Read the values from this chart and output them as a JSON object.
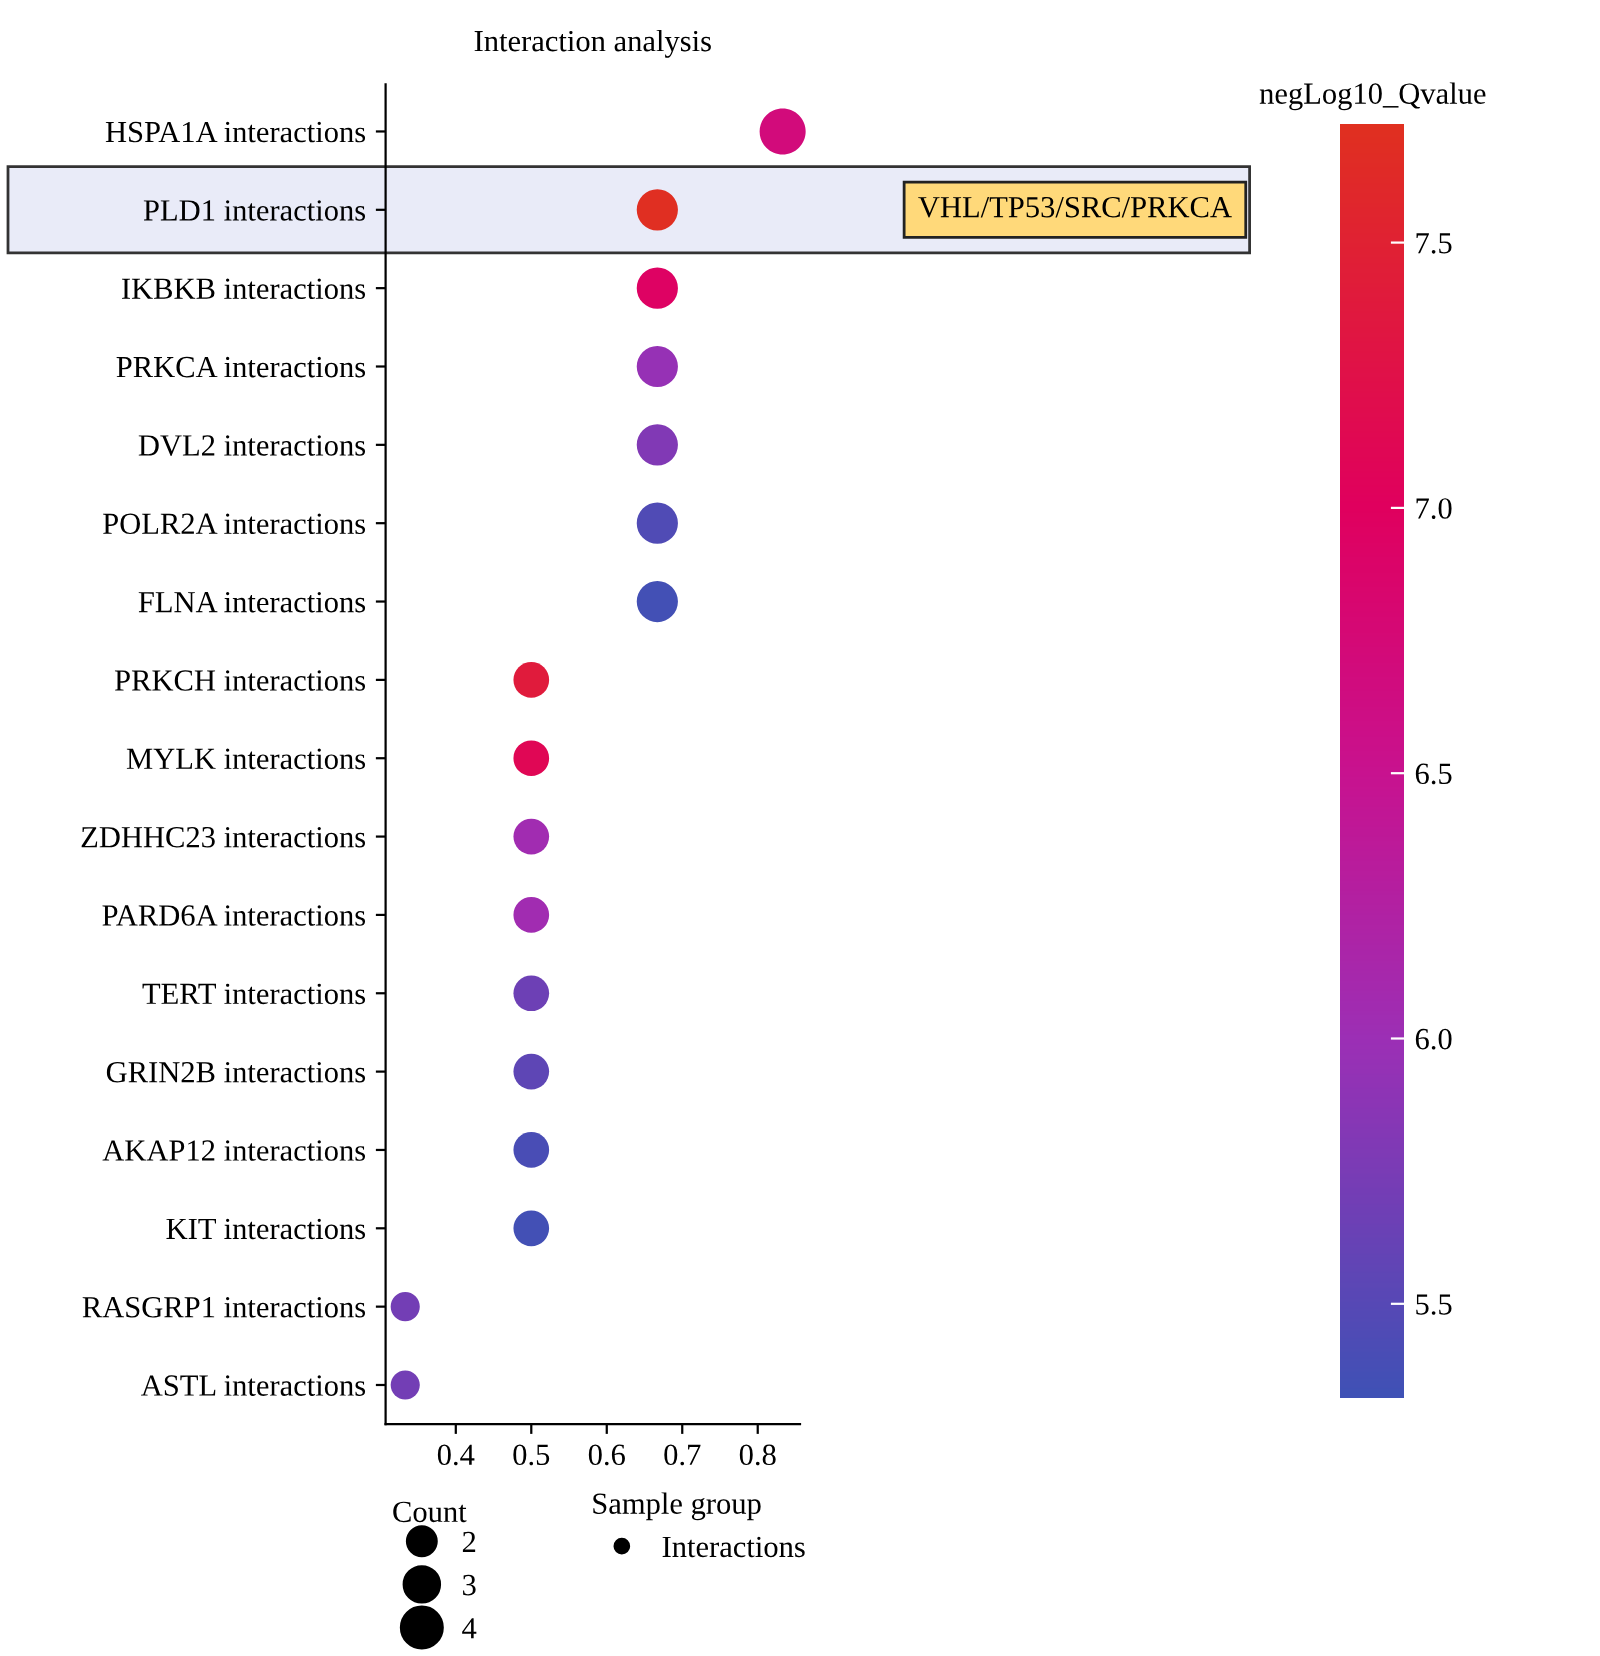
{
  "chart_data": {
    "type": "bubble",
    "title": "Interaction analysis",
    "categories": [
      "HSPA1A interactions",
      "PLD1 interactions",
      "IKBKB interactions",
      "PRKCA interactions",
      "DVL2 interactions",
      "POLR2A interactions",
      "FLNA interactions",
      "PRKCH interactions",
      "MYLK interactions",
      "ZDHHC23 interactions",
      "PARD6A interactions",
      "TERT interactions",
      "GRIN2B interactions",
      "AKAP12 interactions",
      "KIT interactions",
      "RASGRP1 interactions",
      "ASTL interactions"
    ],
    "orientation": "horizontal",
    "series": [
      {
        "name": "Interactions",
        "values": [
          0.833,
          0.667,
          0.667,
          0.667,
          0.667,
          0.667,
          0.667,
          0.5,
          0.5,
          0.5,
          0.5,
          0.5,
          0.5,
          0.5,
          0.5,
          0.333,
          0.333
        ],
        "sizes": [
          5,
          4,
          4,
          4,
          4,
          4,
          4,
          3,
          3,
          3,
          3,
          3,
          3,
          3,
          3,
          2,
          2
        ],
        "cvalues": [
          6.7,
          7.7,
          6.95,
          5.95,
          5.8,
          5.45,
          5.35,
          7.4,
          7.1,
          6.05,
          6.05,
          5.65,
          5.55,
          5.4,
          5.35,
          5.7,
          5.7
        ]
      }
    ],
    "size_legend": [
      2,
      3,
      4
    ],
    "xlim": [
      0.307,
      0.856
    ],
    "xticks": [
      0.4,
      0.5,
      0.6,
      0.7,
      0.8
    ],
    "clabel": "negLog10_Qvalue",
    "clim": [
      5.32,
      7.72
    ],
    "cticks": [
      5.5,
      {
        "value": 6,
        "label": "6.0"
      },
      6.5,
      {
        "value": 7,
        "label": "7.0"
      },
      7.5
    ],
    "legend_title": "Sample group",
    "legend": "bottom",
    "annotations": [
      "Count",
      "VHL/TP53/SRC/PRKCA"
    ],
    "grid": false
  }
}
